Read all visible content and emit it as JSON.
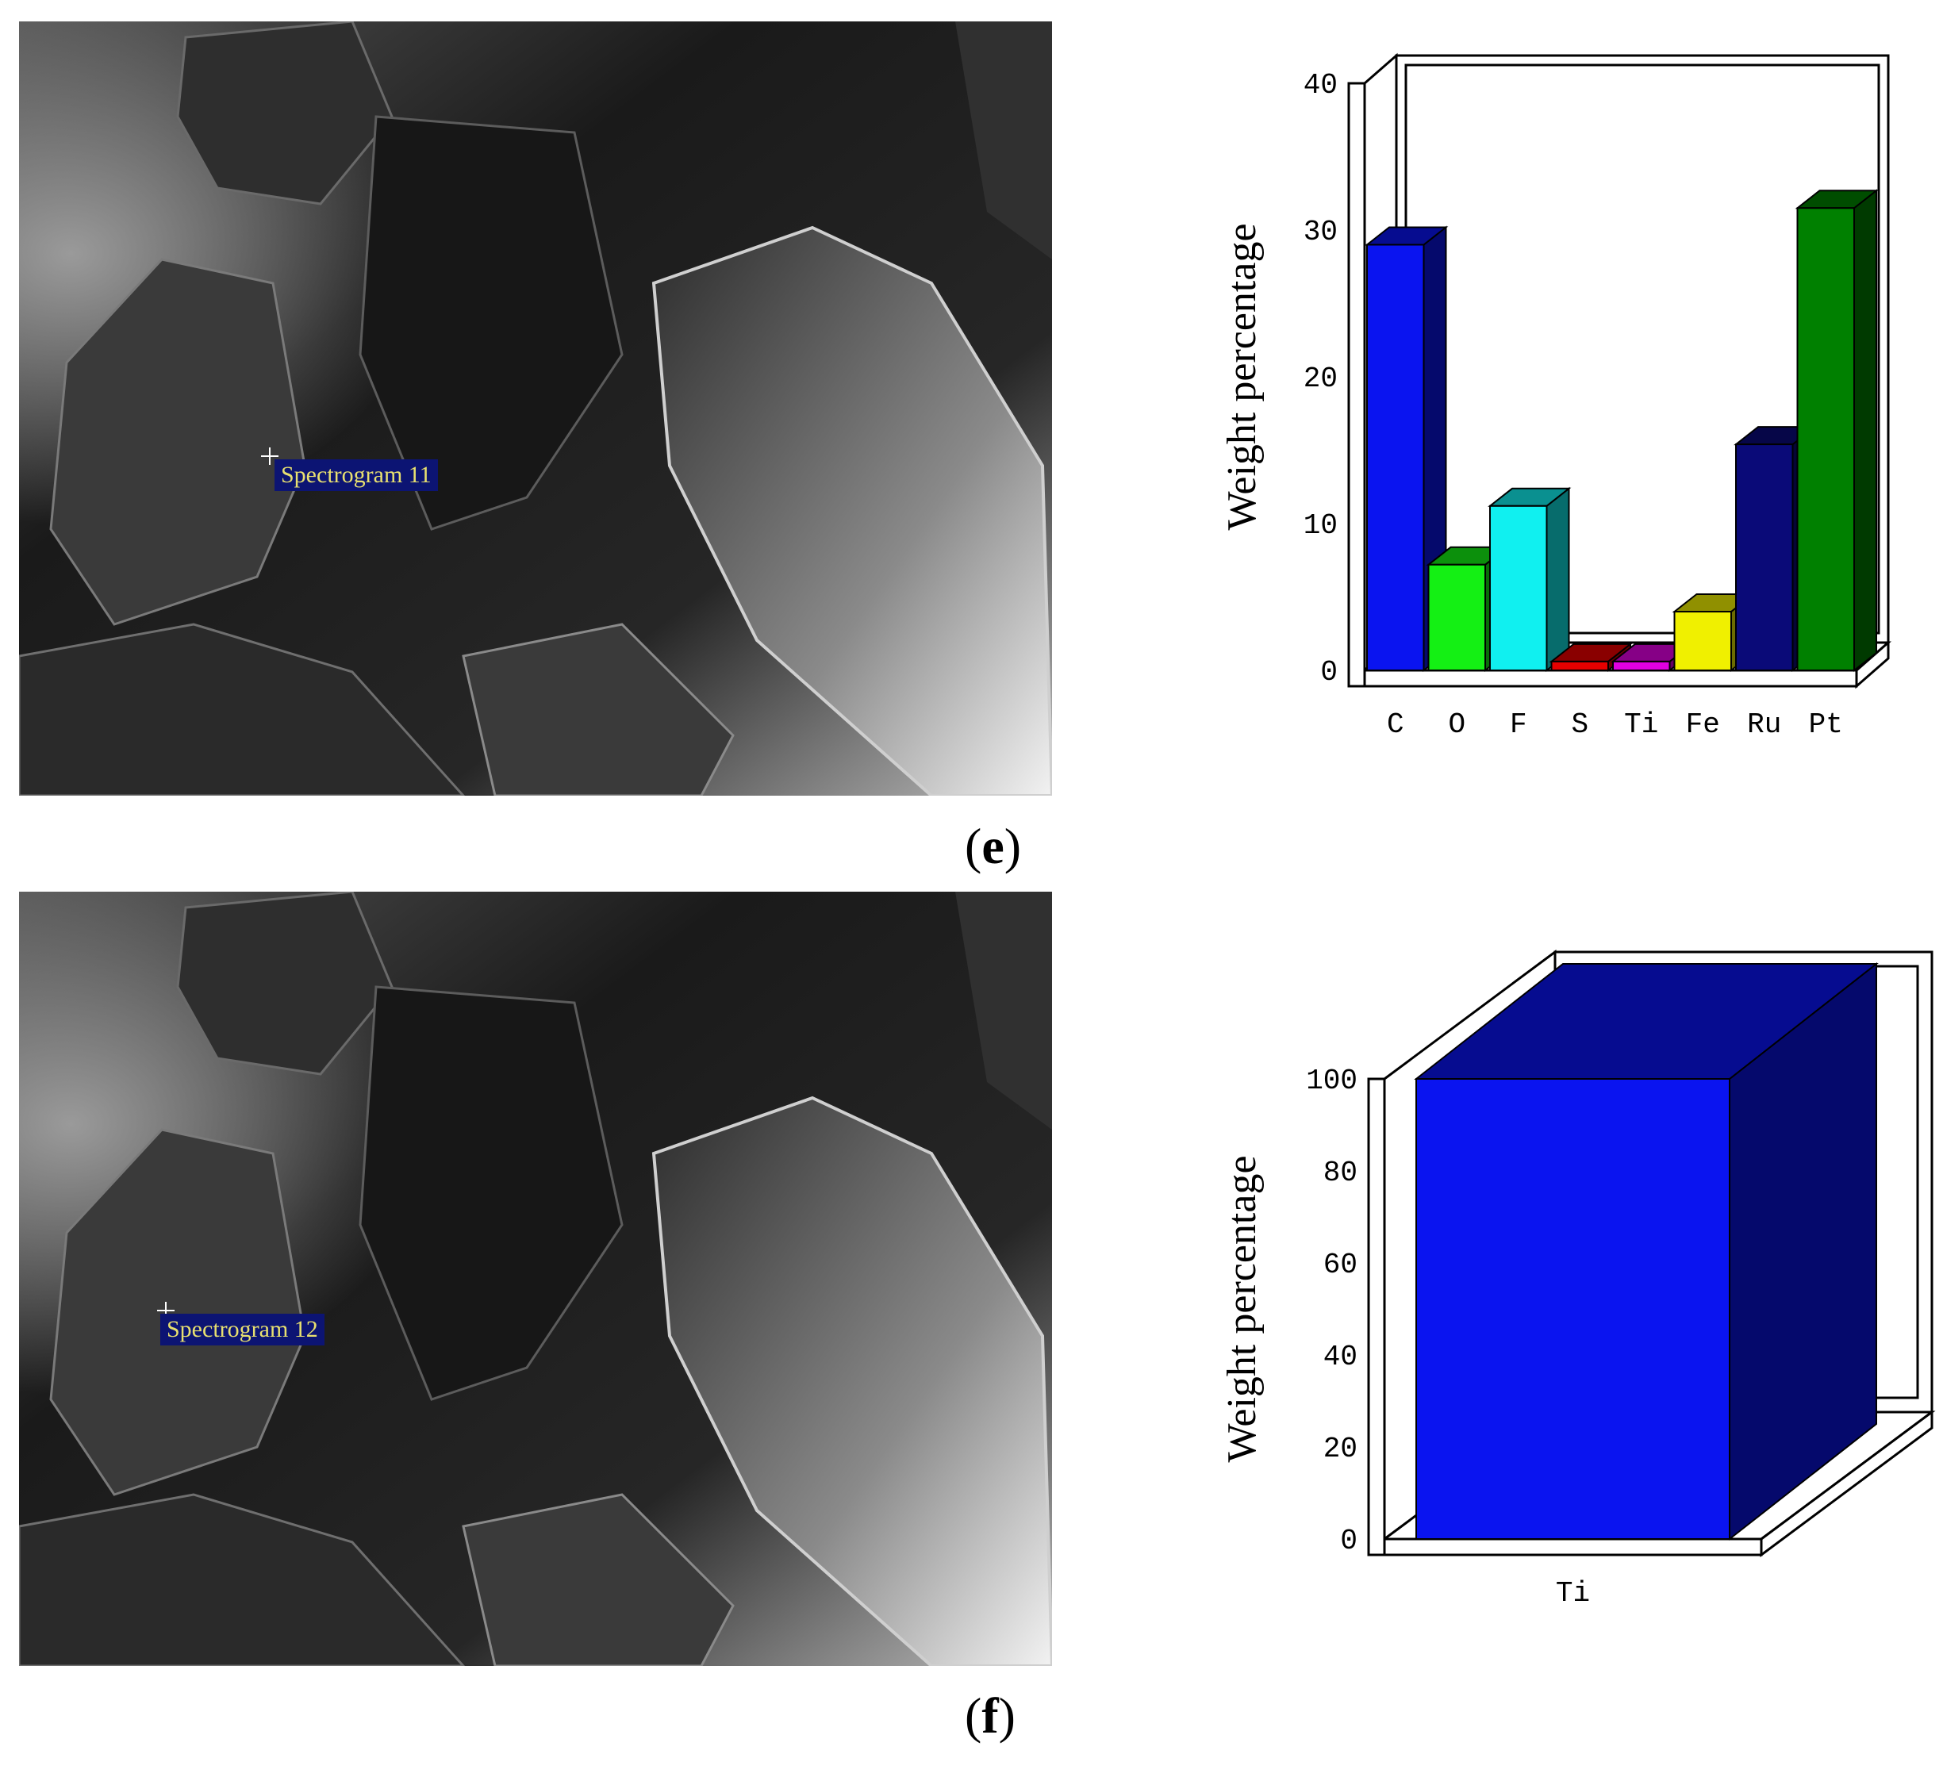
{
  "panels": [
    {
      "id": "e",
      "label": "e",
      "spectrogram_label": "Spectrogram 11"
    },
    {
      "id": "f",
      "label": "f",
      "spectrogram_label": "Spectrogram 12"
    }
  ],
  "chart_data": [
    {
      "type": "bar",
      "title": "",
      "xlabel": "",
      "ylabel": "Weight percentage",
      "ylim": [
        0,
        40
      ],
      "yticks": [
        0,
        10,
        20,
        30,
        40
      ],
      "grid": false,
      "legend": "none",
      "categories": [
        "C",
        "O",
        "F",
        "S",
        "Ti",
        "Fe",
        "Ru",
        "Pt"
      ],
      "values": [
        29,
        7.2,
        11.2,
        0.6,
        0.6,
        4,
        15.4,
        31.5
      ],
      "colors": [
        "#0a14f0",
        "#14f014",
        "#10f0f0",
        "#e60000",
        "#e000e0",
        "#f0f000",
        "#0a0a78",
        "#008000"
      ]
    },
    {
      "type": "bar",
      "title": "",
      "xlabel": "",
      "ylabel": "Weight percentage",
      "ylim": [
        0,
        100
      ],
      "yticks": [
        0,
        20,
        40,
        60,
        80,
        100
      ],
      "grid": false,
      "legend": "none",
      "categories": [
        "Ti"
      ],
      "values": [
        100
      ],
      "colors": [
        "#0a14f0"
      ]
    }
  ]
}
